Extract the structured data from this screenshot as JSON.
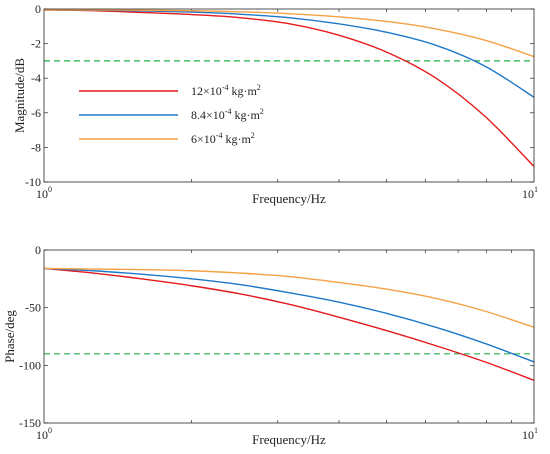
{
  "chart_data": [
    {
      "type": "line",
      "xlabel": "Frequency/Hz",
      "ylabel": "Magnitude/dB",
      "x_scale": "log",
      "xlim": [
        1,
        10
      ],
      "ylim": [
        -10,
        0
      ],
      "x_tick_labels": [
        {
          "base": "10",
          "exp": "0"
        },
        {
          "base": "10",
          "exp": "1"
        }
      ],
      "y_ticks": [
        0,
        -2,
        -4,
        -6,
        -8,
        -10
      ],
      "reference_line": {
        "y": -3,
        "color": "#22b14c",
        "style": "dashed"
      },
      "legend": {
        "placement": "upper-left"
      },
      "series": [
        {
          "name": "12×10⁻⁴ kg·m²",
          "color": "#e41a1c",
          "x": [
            1,
            1.26,
            1.58,
            2,
            2.51,
            3.16,
            3.98,
            5.01,
            6.31,
            7.94,
            10
          ],
          "y": [
            -0.05,
            -0.1,
            -0.2,
            -0.32,
            -0.5,
            -0.85,
            -1.5,
            -2.5,
            -4.0,
            -6.2,
            -9.1
          ]
        },
        {
          "name": "8.4×10⁻⁴ kg·m²",
          "color": "#1f78c8",
          "x": [
            1,
            1.26,
            1.58,
            2,
            2.51,
            3.16,
            3.98,
            5.01,
            6.31,
            7.94,
            10
          ],
          "y": [
            -0.05,
            -0.07,
            -0.11,
            -0.18,
            -0.3,
            -0.5,
            -0.85,
            -1.35,
            -2.1,
            -3.3,
            -5.1
          ]
        },
        {
          "name": "6×10⁻⁴ kg·m²",
          "color": "#f5a145",
          "x": [
            1,
            1.26,
            1.58,
            2,
            2.51,
            3.16,
            3.98,
            5.01,
            6.31,
            7.94,
            10
          ],
          "y": [
            -0.05,
            -0.05,
            -0.07,
            -0.1,
            -0.16,
            -0.27,
            -0.45,
            -0.72,
            -1.15,
            -1.8,
            -2.75
          ]
        }
      ]
    },
    {
      "type": "line",
      "xlabel": "Frequency/Hz",
      "ylabel": "Phase/deg",
      "x_scale": "log",
      "xlim": [
        1,
        10
      ],
      "ylim": [
        -150,
        0
      ],
      "x_tick_labels": [
        {
          "base": "10",
          "exp": "0"
        },
        {
          "base": "10",
          "exp": "1"
        }
      ],
      "y_ticks": [
        0,
        -50,
        -100,
        -150
      ],
      "reference_line": {
        "y": -90,
        "color": "#22b14c",
        "style": "dashed"
      },
      "series": [
        {
          "name": "12×10⁻⁴ kg·m²",
          "color": "#e41a1c",
          "x": [
            1,
            1.26,
            1.58,
            2,
            2.51,
            3.16,
            3.98,
            5.01,
            6.31,
            7.94,
            10
          ],
          "y": [
            -16,
            -20,
            -25,
            -31,
            -38,
            -47,
            -58,
            -70,
            -83,
            -97,
            -113
          ]
        },
        {
          "name": "8.4×10⁻⁴ kg·m²",
          "color": "#1f78c8",
          "x": [
            1,
            1.26,
            1.58,
            2,
            2.51,
            3.16,
            3.98,
            5.01,
            6.31,
            7.94,
            10
          ],
          "y": [
            -16,
            -18,
            -21,
            -25,
            -30,
            -37,
            -45,
            -55,
            -67,
            -81,
            -97
          ]
        },
        {
          "name": "6×10⁻⁴ kg·m²",
          "color": "#f5a145",
          "x": [
            1,
            1.26,
            1.58,
            2,
            2.51,
            3.16,
            3.98,
            5.01,
            6.31,
            7.94,
            10
          ],
          "y": [
            -16,
            -16.5,
            -17,
            -18,
            -20,
            -23,
            -28,
            -34,
            -42,
            -53,
            -67
          ]
        }
      ]
    }
  ]
}
